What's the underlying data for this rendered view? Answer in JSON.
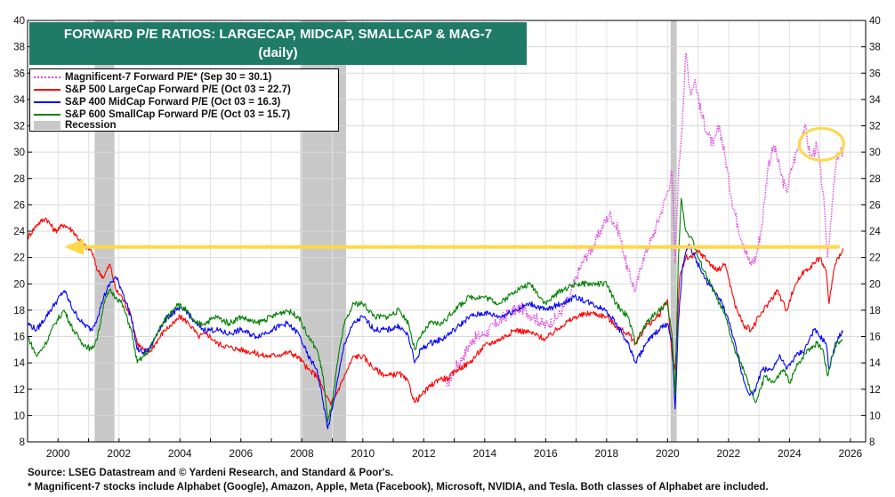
{
  "chart_data": {
    "type": "line",
    "title": "FORWARD P/E RATIOS: LARGECAP, MIDCAP, SMALLCAP & MAG-7",
    "subtitle": "(daily)",
    "xlim": [
      1999.0,
      2026.5
    ],
    "ylim": [
      8,
      40
    ],
    "y_ticks": [
      8,
      10,
      12,
      14,
      16,
      18,
      20,
      22,
      24,
      26,
      28,
      30,
      32,
      34,
      36,
      38,
      40
    ],
    "x_ticks": [
      2000,
      2002,
      2004,
      2006,
      2008,
      2010,
      2012,
      2014,
      2016,
      2018,
      2020,
      2022,
      2024,
      2026
    ],
    "grid": true,
    "legend_position": "top-left",
    "recessions": [
      [
        2001.2,
        2001.85
      ],
      [
        2007.95,
        2009.45
      ],
      [
        2020.1,
        2020.3
      ]
    ],
    "recession_label": "Recession",
    "recession_color": "#c8c8c8",
    "series": [
      {
        "name": "Magnificent-7 Forward P/E* (Sep 30 = 30.1)",
        "color": "#e040e0",
        "dotted": true,
        "x": [
          2012.75,
          2013.0,
          2013.3,
          2013.6,
          2014.0,
          2014.4,
          2014.8,
          2015.2,
          2015.6,
          2016.0,
          2016.4,
          2016.8,
          2017.0,
          2017.3,
          2017.6,
          2017.9,
          2018.1,
          2018.4,
          2018.7,
          2018.95,
          2019.2,
          2019.5,
          2019.8,
          2020.0,
          2020.15,
          2020.25,
          2020.35,
          2020.5,
          2020.6,
          2020.75,
          2020.9,
          2021.1,
          2021.3,
          2021.5,
          2021.7,
          2021.9,
          2022.1,
          2022.3,
          2022.5,
          2022.7,
          2022.9,
          2023.1,
          2023.3,
          2023.5,
          2023.7,
          2023.9,
          2024.1,
          2024.3,
          2024.5,
          2024.7,
          2024.9,
          2025.1,
          2025.25,
          2025.4,
          2025.55,
          2025.75
        ],
        "values": [
          12.2,
          13.5,
          14.5,
          15.8,
          16.2,
          17.0,
          17.8,
          18.2,
          17.5,
          16.8,
          17.5,
          19.0,
          20.5,
          22.0,
          23.0,
          24.5,
          25.3,
          24.0,
          21.0,
          19.5,
          22.0,
          23.5,
          25.5,
          27.0,
          28.5,
          21.5,
          28.0,
          33.0,
          37.5,
          34.5,
          35.5,
          33.0,
          31.5,
          30.5,
          32.0,
          29.5,
          26.5,
          24.5,
          23.0,
          21.5,
          22.0,
          24.5,
          29.0,
          30.5,
          28.5,
          27.0,
          29.0,
          30.5,
          32.0,
          29.5,
          30.5,
          27.0,
          22.0,
          26.0,
          29.5,
          30.1
        ]
      },
      {
        "name": "S&P 500 LargeCap Forward P/E (Oct 03 = 22.7)",
        "color": "#ff0000",
        "dotted": false,
        "x": [
          1999.0,
          1999.3,
          1999.6,
          1999.9,
          2000.2,
          2000.5,
          2000.8,
          2001.1,
          2001.3,
          2001.5,
          2001.7,
          2001.9,
          2002.1,
          2002.4,
          2002.6,
          2002.8,
          2003.0,
          2003.2,
          2003.5,
          2003.8,
          2004.0,
          2004.3,
          2004.6,
          2004.9,
          2005.2,
          2005.6,
          2006.0,
          2006.4,
          2006.8,
          2007.2,
          2007.6,
          2007.9,
          2008.2,
          2008.5,
          2008.8,
          2008.95,
          2009.1,
          2009.3,
          2009.5,
          2009.7,
          2010.0,
          2010.4,
          2010.8,
          2011.2,
          2011.5,
          2011.7,
          2011.9,
          2012.2,
          2012.5,
          2012.8,
          2013.1,
          2013.5,
          2014.0,
          2014.5,
          2015.0,
          2015.5,
          2016.0,
          2016.5,
          2017.0,
          2017.5,
          2018.0,
          2018.3,
          2018.7,
          2018.95,
          2019.3,
          2019.7,
          2020.0,
          2020.15,
          2020.25,
          2020.4,
          2020.6,
          2020.8,
          2021.0,
          2021.3,
          2021.6,
          2021.9,
          2022.2,
          2022.5,
          2022.75,
          2023.0,
          2023.3,
          2023.6,
          2023.9,
          2024.2,
          2024.5,
          2024.8,
          2025.0,
          2025.2,
          2025.3,
          2025.45,
          2025.6,
          2025.75
        ],
        "values": [
          23.5,
          24.5,
          25.0,
          24.0,
          24.5,
          24.0,
          23.0,
          22.5,
          21.0,
          20.5,
          21.5,
          19.5,
          19.0,
          17.5,
          15.5,
          15.0,
          14.8,
          15.5,
          16.5,
          17.0,
          17.5,
          17.0,
          16.0,
          16.2,
          15.5,
          15.2,
          15.0,
          14.8,
          14.5,
          14.6,
          14.8,
          14.4,
          13.5,
          13.0,
          11.5,
          10.8,
          11.5,
          12.5,
          13.5,
          14.5,
          14.5,
          13.5,
          13.0,
          13.2,
          12.5,
          11.0,
          11.5,
          12.2,
          12.8,
          12.8,
          13.5,
          14.0,
          15.3,
          15.8,
          16.5,
          16.3,
          15.8,
          16.8,
          17.5,
          17.8,
          17.5,
          16.8,
          16.2,
          15.5,
          16.8,
          17.5,
          18.8,
          14.5,
          13.5,
          20.5,
          22.0,
          22.0,
          22.5,
          21.8,
          21.0,
          21.5,
          18.5,
          16.8,
          16.5,
          17.5,
          18.5,
          19.5,
          18.0,
          20.0,
          21.0,
          21.5,
          22.0,
          21.0,
          18.5,
          21.0,
          22.0,
          22.7
        ]
      },
      {
        "name": "S&P 400 MidCap Forward P/E (Oct 03 = 16.3)",
        "color": "#0000ff",
        "dotted": false,
        "x": [
          1999.0,
          1999.3,
          1999.6,
          1999.9,
          2000.2,
          2000.5,
          2000.8,
          2001.1,
          2001.3,
          2001.5,
          2001.7,
          2001.9,
          2002.1,
          2002.4,
          2002.6,
          2002.8,
          2003.0,
          2003.3,
          2003.6,
          2003.9,
          2004.2,
          2004.5,
          2004.8,
          2005.2,
          2005.6,
          2006.0,
          2006.5,
          2007.0,
          2007.5,
          2007.9,
          2008.2,
          2008.5,
          2008.7,
          2008.85,
          2009.0,
          2009.2,
          2009.4,
          2009.7,
          2010.0,
          2010.4,
          2010.8,
          2011.2,
          2011.5,
          2011.7,
          2011.9,
          2012.2,
          2012.6,
          2013.0,
          2013.5,
          2014.0,
          2014.5,
          2015.0,
          2015.5,
          2016.0,
          2016.5,
          2017.0,
          2017.5,
          2018.0,
          2018.3,
          2018.7,
          2018.95,
          2019.3,
          2019.7,
          2020.0,
          2020.15,
          2020.25,
          2020.35,
          2020.5,
          2020.7,
          2020.9,
          2021.2,
          2021.5,
          2021.8,
          2022.1,
          2022.4,
          2022.6,
          2022.8,
          2023.1,
          2023.4,
          2023.7,
          2023.9,
          2024.2,
          2024.5,
          2024.8,
          2025.0,
          2025.2,
          2025.3,
          2025.45,
          2025.6,
          2025.75
        ],
        "values": [
          17.0,
          16.5,
          17.5,
          18.5,
          19.5,
          18.0,
          17.0,
          16.5,
          17.5,
          19.0,
          20.0,
          20.5,
          19.5,
          17.5,
          15.0,
          14.8,
          15.0,
          16.5,
          17.5,
          18.0,
          18.0,
          17.0,
          16.5,
          16.5,
          16.2,
          16.5,
          16.0,
          16.5,
          17.0,
          16.2,
          14.5,
          13.5,
          11.0,
          9.0,
          10.5,
          13.0,
          15.5,
          17.0,
          17.5,
          16.5,
          16.5,
          16.8,
          16.0,
          14.0,
          15.0,
          15.5,
          15.8,
          16.5,
          17.5,
          17.8,
          17.5,
          18.0,
          18.5,
          18.0,
          18.5,
          19.0,
          18.5,
          18.0,
          17.0,
          15.5,
          14.0,
          15.5,
          16.5,
          17.0,
          15.5,
          10.5,
          17.0,
          21.5,
          23.0,
          22.0,
          20.5,
          19.5,
          18.5,
          16.5,
          13.5,
          12.0,
          11.5,
          13.5,
          13.5,
          14.5,
          13.5,
          14.5,
          15.0,
          16.5,
          16.0,
          15.5,
          13.5,
          15.0,
          16.0,
          16.3
        ]
      },
      {
        "name": "S&P 600 SmallCap Forward P/E (Oct 03 = 15.7)",
        "color": "#008000",
        "dotted": false,
        "x": [
          1999.0,
          1999.3,
          1999.6,
          1999.9,
          2000.2,
          2000.5,
          2000.8,
          2001.1,
          2001.3,
          2001.5,
          2001.7,
          2001.9,
          2002.1,
          2002.4,
          2002.6,
          2002.8,
          2003.0,
          2003.3,
          2003.6,
          2003.9,
          2004.2,
          2004.5,
          2004.8,
          2005.2,
          2005.6,
          2006.0,
          2006.5,
          2007.0,
          2007.5,
          2007.9,
          2008.2,
          2008.5,
          2008.7,
          2008.85,
          2009.0,
          2009.2,
          2009.4,
          2009.7,
          2010.0,
          2010.4,
          2010.8,
          2011.2,
          2011.5,
          2011.7,
          2011.9,
          2012.2,
          2012.6,
          2013.0,
          2013.5,
          2014.0,
          2014.5,
          2015.0,
          2015.5,
          2016.0,
          2016.5,
          2017.0,
          2017.5,
          2018.0,
          2018.3,
          2018.7,
          2018.95,
          2019.3,
          2019.7,
          2020.0,
          2020.15,
          2020.25,
          2020.35,
          2020.45,
          2020.6,
          2020.8,
          2021.0,
          2021.3,
          2021.6,
          2021.9,
          2022.2,
          2022.5,
          2022.7,
          2022.9,
          2023.2,
          2023.5,
          2023.8,
          2024.0,
          2024.3,
          2024.6,
          2024.9,
          2025.1,
          2025.25,
          2025.4,
          2025.55,
          2025.75
        ],
        "values": [
          16.0,
          14.5,
          15.5,
          17.0,
          18.0,
          16.5,
          15.5,
          15.0,
          16.0,
          18.5,
          19.5,
          19.0,
          18.5,
          16.5,
          14.0,
          14.5,
          15.0,
          16.5,
          17.5,
          18.5,
          18.0,
          17.0,
          17.0,
          17.5,
          17.0,
          17.5,
          17.0,
          17.5,
          18.0,
          17.5,
          16.0,
          15.0,
          13.0,
          9.5,
          11.0,
          14.5,
          17.0,
          18.5,
          18.5,
          17.5,
          17.5,
          18.0,
          17.0,
          15.0,
          16.0,
          17.0,
          17.0,
          18.0,
          19.0,
          19.0,
          18.5,
          19.5,
          20.0,
          18.5,
          19.5,
          20.0,
          20.0,
          20.0,
          18.5,
          17.5,
          15.5,
          17.0,
          18.0,
          18.5,
          16.0,
          11.5,
          21.5,
          26.5,
          24.0,
          23.5,
          22.0,
          20.5,
          19.0,
          17.5,
          15.0,
          13.5,
          12.0,
          11.0,
          13.0,
          12.5,
          13.5,
          12.5,
          14.0,
          15.0,
          15.5,
          15.0,
          13.0,
          14.5,
          15.5,
          15.7
        ]
      }
    ],
    "annotation_arrow": {
      "x_from": 2025.6,
      "x_to": 2000.2,
      "y": 22.8,
      "color": "#ffd84a"
    },
    "annotation_circle": {
      "x": 2025.05,
      "y": 30.6,
      "color": "#ffd84a"
    }
  },
  "footer": {
    "source": "Source: LSEG Datastream and © Yardeni Research, and Standard & Poor's.",
    "note": "* Magnificent-7 stocks include Alphabet (Google), Amazon, Apple, Meta (Facebook), Microsoft, NVIDIA, and Tesla. Both classes of Alphabet are included."
  }
}
